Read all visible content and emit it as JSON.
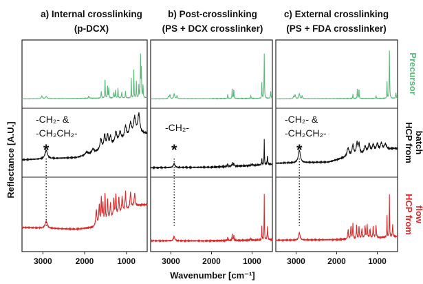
{
  "chart_data": {
    "type": "line",
    "panels": [
      {
        "title_line1": "a) Internal crosslinking",
        "title_line2": "(p-DCX)",
        "annotation_line1": "-CH₂- &",
        "annotation_line2": "-CH₂CH₂-",
        "annotation_x": 2920,
        "series": [
          {
            "name": "Precursor",
            "peaks": [
              [
                3025,
                0.05,
                15
              ],
              [
                2920,
                0.04,
                20
              ],
              [
                1900,
                0.04,
                10
              ],
              [
                1600,
                0.12,
                8
              ],
              [
                1510,
                0.35,
                6
              ],
              [
                1450,
                0.22,
                6
              ],
              [
                1420,
                0.18,
                6
              ],
              [
                1300,
                0.1,
                8
              ],
              [
                1260,
                0.14,
                6
              ],
              [
                1200,
                0.18,
                6
              ],
              [
                1110,
                0.1,
                8
              ],
              [
                1020,
                0.12,
                6
              ],
              [
                880,
                0.35,
                4
              ],
              [
                820,
                0.5,
                5
              ],
              [
                760,
                0.3,
                5
              ],
              [
                700,
                0.22,
                5
              ],
              [
                660,
                0.75,
                6
              ],
              [
                640,
                0.5,
                6
              ],
              [
                600,
                0.22,
                6
              ]
            ],
            "baseline": [
              [
                3500,
                0.02
              ],
              [
                600,
                0.04
              ]
            ]
          },
          {
            "name": "HCP from batch",
            "peaks": [
              [
                2920,
                0.15,
                35
              ],
              [
                1950,
                0.05,
                40
              ],
              [
                1800,
                0.08,
                30
              ],
              [
                1610,
                0.18,
                25
              ],
              [
                1520,
                0.22,
                20
              ],
              [
                1450,
                0.2,
                20
              ],
              [
                1380,
                0.15,
                20
              ],
              [
                1250,
                0.18,
                25
              ],
              [
                1150,
                0.15,
                25
              ],
              [
                1020,
                0.2,
                25
              ],
              [
                900,
                0.22,
                30
              ],
              [
                800,
                0.3,
                30
              ],
              [
                700,
                0.35,
                30
              ]
            ],
            "baseline": [
              [
                3500,
                0.16
              ],
              [
                2200,
                0.2
              ],
              [
                1800,
                0.27
              ],
              [
                1000,
                0.55
              ],
              [
                600,
                0.62
              ]
            ]
          },
          {
            "name": "HCP from flow",
            "peaks": [
              [
                2920,
                0.12,
                30
              ],
              [
                1720,
                0.25,
                15
              ],
              [
                1650,
                0.3,
                12
              ],
              [
                1600,
                0.4,
                10
              ],
              [
                1560,
                0.28,
                10
              ],
              [
                1510,
                0.45,
                8
              ],
              [
                1450,
                0.35,
                10
              ],
              [
                1380,
                0.25,
                12
              ],
              [
                1300,
                0.3,
                12
              ],
              [
                1250,
                0.35,
                10
              ],
              [
                1180,
                0.28,
                12
              ],
              [
                1100,
                0.25,
                15
              ],
              [
                1020,
                0.3,
                12
              ],
              [
                900,
                0.25,
                15
              ],
              [
                800,
                0.2,
                15
              ]
            ],
            "baseline": [
              [
                3500,
                0.25
              ],
              [
                2200,
                0.22
              ],
              [
                1800,
                0.25
              ],
              [
                1200,
                0.45
              ],
              [
                800,
                0.6
              ],
              [
                600,
                0.62
              ]
            ]
          }
        ]
      },
      {
        "title_line1": "b) Post-crosslinking",
        "title_line2": "(PS + DCX crosslinker)",
        "annotation_line1": "-CH₂-",
        "annotation_line2": "",
        "annotation_x": 2920,
        "series": [
          {
            "name": "Precursor",
            "peaks": [
              [
                3060,
                0.04,
                12
              ],
              [
                3025,
                0.07,
                12
              ],
              [
                2920,
                0.09,
                15
              ],
              [
                2850,
                0.05,
                12
              ],
              [
                1600,
                0.08,
                6
              ],
              [
                1490,
                0.18,
                6
              ],
              [
                1450,
                0.16,
                6
              ],
              [
                1030,
                0.05,
                6
              ],
              [
                760,
                0.28,
                5
              ],
              [
                700,
                0.8,
                6
              ],
              [
                540,
                0.12,
                8
              ]
            ],
            "baseline": [
              [
                3500,
                0.02
              ],
              [
                600,
                0.03
              ]
            ]
          },
          {
            "name": "HCP from batch",
            "peaks": [
              [
                2920,
                0.07,
                25
              ],
              [
                1600,
                0.05,
                10
              ],
              [
                1490,
                0.06,
                10
              ],
              [
                1450,
                0.05,
                10
              ],
              [
                1000,
                0.02,
                20
              ],
              [
                760,
                0.1,
                6
              ],
              [
                700,
                0.45,
                5
              ],
              [
                620,
                0.15,
                8
              ]
            ],
            "baseline": [
              [
                3500,
                0.02
              ],
              [
                2000,
                0.03
              ],
              [
                1000,
                0.06
              ],
              [
                600,
                0.08
              ]
            ]
          },
          {
            "name": "HCP from flow",
            "peaks": [
              [
                2920,
                0.07,
                20
              ],
              [
                1600,
                0.05,
                8
              ],
              [
                1490,
                0.1,
                8
              ],
              [
                1450,
                0.08,
                8
              ],
              [
                1030,
                0.03,
                8
              ],
              [
                760,
                0.22,
                5
              ],
              [
                700,
                0.75,
                5
              ],
              [
                620,
                0.2,
                8
              ]
            ],
            "baseline": [
              [
                3500,
                0.03
              ],
              [
                2000,
                0.03
              ],
              [
                1000,
                0.04
              ],
              [
                600,
                0.05
              ]
            ]
          }
        ]
      },
      {
        "title_line1": "c) External crosslinking",
        "title_line2": "(PS + FDA crosslinker)",
        "annotation_line1": "-CH₂- &",
        "annotation_line2": "-CH₂CH₂-",
        "annotation_x": 2920,
        "series": [
          {
            "name": "Precursor",
            "peaks": [
              [
                3060,
                0.04,
                12
              ],
              [
                3025,
                0.07,
                12
              ],
              [
                2920,
                0.09,
                15
              ],
              [
                2850,
                0.05,
                12
              ],
              [
                1600,
                0.08,
                6
              ],
              [
                1490,
                0.18,
                6
              ],
              [
                1450,
                0.16,
                6
              ],
              [
                1030,
                0.05,
                6
              ],
              [
                760,
                0.3,
                5
              ],
              [
                700,
                0.85,
                6
              ],
              [
                540,
                0.1,
                8
              ]
            ],
            "baseline": [
              [
                3500,
                0.02
              ],
              [
                600,
                0.03
              ]
            ]
          },
          {
            "name": "HCP from batch",
            "peaks": [
              [
                2920,
                0.22,
                30
              ],
              [
                1720,
                0.15,
                30
              ],
              [
                1600,
                0.18,
                25
              ],
              [
                1500,
                0.2,
                20
              ],
              [
                1450,
                0.18,
                20
              ],
              [
                1300,
                0.12,
                25
              ],
              [
                1200,
                0.15,
                25
              ],
              [
                1100,
                0.12,
                25
              ],
              [
                1000,
                0.12,
                25
              ],
              [
                900,
                0.12,
                25
              ],
              [
                800,
                0.1,
                30
              ]
            ],
            "baseline": [
              [
                3500,
                0.1
              ],
              [
                2200,
                0.12
              ],
              [
                1800,
                0.2
              ],
              [
                1000,
                0.32
              ],
              [
                600,
                0.36
              ]
            ]
          },
          {
            "name": "HCP from flow",
            "peaks": [
              [
                2920,
                0.12,
                20
              ],
              [
                1720,
                0.15,
                10
              ],
              [
                1650,
                0.2,
                10
              ],
              [
                1600,
                0.25,
                8
              ],
              [
                1510,
                0.22,
                8
              ],
              [
                1450,
                0.2,
                8
              ],
              [
                1380,
                0.15,
                10
              ],
              [
                1300,
                0.2,
                10
              ],
              [
                1250,
                0.22,
                10
              ],
              [
                1180,
                0.15,
                10
              ],
              [
                1100,
                0.18,
                10
              ],
              [
                1030,
                0.2,
                10
              ],
              [
                760,
                0.35,
                5
              ],
              [
                700,
                0.7,
                5
              ],
              [
                620,
                0.2,
                8
              ]
            ],
            "baseline": [
              [
                3500,
                0.04
              ],
              [
                2000,
                0.05
              ],
              [
                1000,
                0.08
              ],
              [
                600,
                0.1
              ]
            ]
          }
        ]
      }
    ],
    "row_labels": [
      {
        "line1": "Precursor",
        "line2": "",
        "color": "#5bb87a"
      },
      {
        "line1": "HCP from",
        "line2": "batch",
        "color": "#111111"
      },
      {
        "line1": "HCP from",
        "line2": "flow",
        "color": "#dd2a2a"
      }
    ],
    "series_colors": [
      "#5bb87a",
      "#111111",
      "#dd2a2a"
    ],
    "x_ticks": [
      "3000",
      "2000",
      "1000"
    ],
    "xlabel": "Wavenumber [cm⁻¹]",
    "ylabel": "Reflectance [A.U.]",
    "xlim": [
      3500,
      500
    ]
  }
}
